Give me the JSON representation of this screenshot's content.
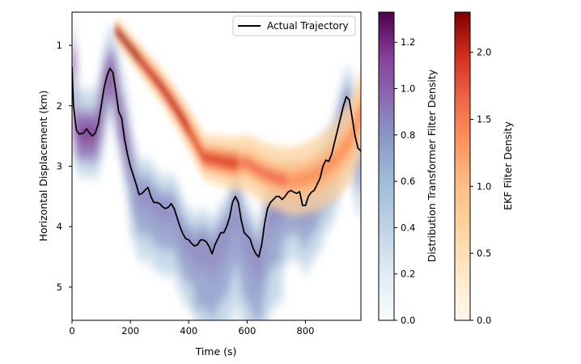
{
  "chart_data": {
    "type": "heatmap",
    "title": "",
    "xlabel": "Time (s)",
    "ylabel": "Horizontal Displacement (km)",
    "xlim": [
      0,
      990
    ],
    "ylim": [
      5.55,
      0.45
    ],
    "y_inverted": true,
    "xticks": [
      0,
      200,
      400,
      600,
      800
    ],
    "yticks": [
      1,
      2,
      3,
      4,
      5
    ],
    "grid": false,
    "legend": {
      "position": "top-right",
      "entries": [
        {
          "label": "Actual Trajectory",
          "color": "#000000",
          "style": "line"
        }
      ]
    },
    "series": [
      {
        "name": "Actual Trajectory",
        "type": "line",
        "color": "#000000",
        "x": [
          0,
          5,
          15,
          25,
          40,
          50,
          60,
          70,
          80,
          90,
          100,
          110,
          120,
          130,
          140,
          150,
          160,
          170,
          180,
          190,
          200,
          210,
          220,
          230,
          240,
          250,
          260,
          270,
          280,
          290,
          300,
          310,
          320,
          330,
          340,
          350,
          360,
          370,
          380,
          390,
          400,
          410,
          420,
          430,
          440,
          450,
          460,
          470,
          480,
          490,
          500,
          510,
          520,
          530,
          540,
          550,
          560,
          570,
          580,
          590,
          600,
          610,
          620,
          630,
          640,
          650,
          660,
          670,
          680,
          690,
          700,
          710,
          720,
          730,
          740,
          750,
          760,
          770,
          780,
          790,
          800,
          810,
          820,
          830,
          840,
          850,
          860,
          870,
          880,
          890,
          900,
          910,
          920,
          930,
          940,
          950,
          960,
          970,
          980,
          990
        ],
        "y": [
          1.35,
          2.0,
          2.4,
          2.47,
          2.45,
          2.38,
          2.45,
          2.5,
          2.45,
          2.3,
          2.0,
          1.7,
          1.5,
          1.38,
          1.45,
          1.75,
          2.1,
          2.2,
          2.55,
          2.8,
          3.0,
          3.15,
          3.3,
          3.47,
          3.45,
          3.4,
          3.35,
          3.5,
          3.6,
          3.6,
          3.62,
          3.67,
          3.7,
          3.68,
          3.62,
          3.7,
          3.85,
          4.0,
          4.12,
          4.2,
          4.22,
          4.28,
          4.32,
          4.3,
          4.22,
          4.22,
          4.25,
          4.33,
          4.45,
          4.3,
          4.2,
          4.1,
          4.1,
          4.0,
          3.85,
          3.6,
          3.5,
          3.6,
          3.9,
          4.1,
          4.15,
          4.2,
          4.35,
          4.45,
          4.5,
          4.3,
          3.95,
          3.7,
          3.6,
          3.55,
          3.5,
          3.5,
          3.55,
          3.5,
          3.43,
          3.4,
          3.43,
          3.45,
          3.42,
          3.65,
          3.65,
          3.5,
          3.43,
          3.4,
          3.3,
          3.2,
          3.0,
          2.9,
          2.92,
          2.8,
          2.6,
          2.4,
          2.2,
          2.0,
          1.85,
          1.9,
          2.2,
          2.5,
          2.7,
          2.75
        ]
      }
    ],
    "heatmap_layers": [
      {
        "name": "Distribution Transformer Filter Density",
        "colormap": "BuPu",
        "colorbar_label": "Distribution Transformer Filter Density",
        "vmin": 0.0,
        "vmax": 1.33,
        "colorbar_ticks": [
          "0.0",
          "0.2",
          "0.4",
          "0.6",
          "0.8",
          "1.0",
          "1.2"
        ]
      },
      {
        "name": "EKF Filter Density",
        "colormap": "OrRd",
        "colorbar_label": "EKF Filter Density",
        "vmin": 0.0,
        "vmax": 2.3,
        "colorbar_ticks": [
          "0.0",
          "0.5",
          "1.0",
          "1.5",
          "2.0"
        ],
        "mean_track": {
          "x": [
            150,
            200,
            250,
            300,
            350,
            400,
            450,
            500,
            550,
            600,
            650,
            700,
            750,
            800,
            850,
            900,
            950,
            990
          ],
          "y": [
            0.75,
            1.05,
            1.35,
            1.65,
            2.0,
            2.4,
            2.85,
            2.9,
            2.95,
            2.95,
            3.1,
            3.2,
            3.25,
            3.2,
            3.1,
            2.9,
            2.6,
            2.1
          ]
        }
      }
    ]
  }
}
